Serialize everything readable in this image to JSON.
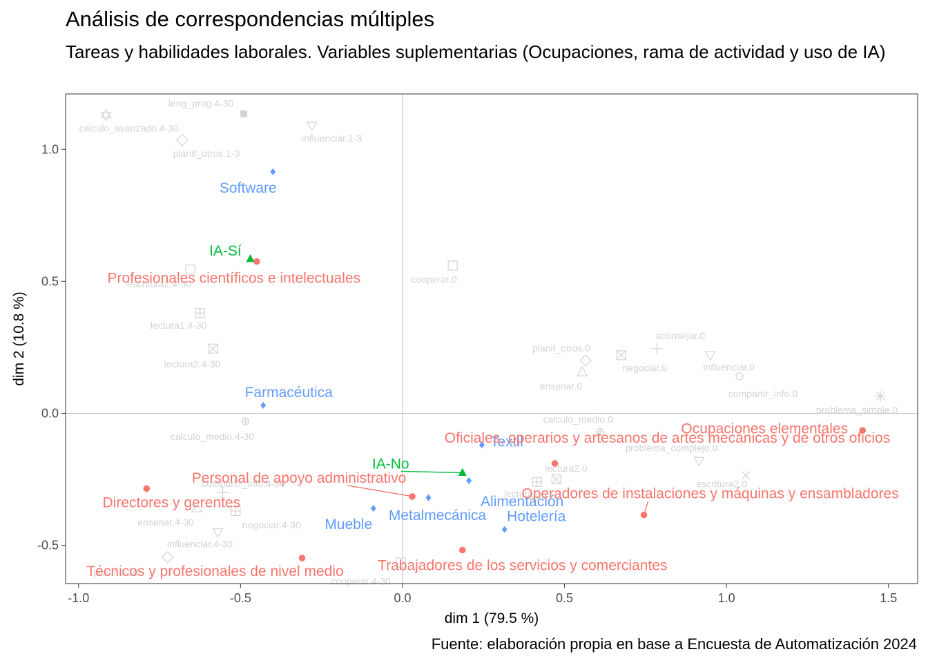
{
  "title": "Análisis de correspondencias múltiples",
  "subtitle": "Tareas y habilidades laborales. Variables suplementarias (Ocupaciones, rama de actividad y uso de IA)",
  "caption": "Fuente: elaboración propia en base a Encuesta de Automatización 2024",
  "chart_data": {
    "type": "scatter",
    "title": "Análisis de correspondencias múltiples",
    "xlabel": "dim 1 (79.5 %)",
    "ylabel": "dim 2 (10.8 %)",
    "xlim": [
      -1.04,
      1.59
    ],
    "ylim": [
      -0.645,
      1.21
    ],
    "xticks": [
      -1.0,
      -0.5,
      0.0,
      0.5,
      1.0,
      1.5
    ],
    "xtick_labels": [
      "-1.0",
      "-0.5",
      "0.0",
      "0.5",
      "1.0",
      "1.5"
    ],
    "yticks": [
      -0.5,
      0.0,
      0.5,
      1.0
    ],
    "ytick_labels": [
      "-0.5",
      "0.0",
      "0.5",
      "1.0"
    ],
    "grid": false,
    "colors": {
      "ocupaciones": "#F8766D",
      "ia": "#00BA38",
      "rama": "#619CFF",
      "variables": "#D3D3D3"
    },
    "series": [
      {
        "group": "ocupaciones",
        "marker": "circle",
        "points": [
          {
            "label": "Profesionales científicos e intelectuales",
            "x": -0.45,
            "y": 0.575
          },
          {
            "label": "Directores y gerentes",
            "x": -0.79,
            "y": -0.285
          },
          {
            "label": "Personal de apoyo administrativo",
            "x": 0.03,
            "y": -0.315
          },
          {
            "label": "Técnicos y profesionales de nivel medio",
            "x": -0.31,
            "y": -0.548
          },
          {
            "label": "Trabajadores de los servicios y comerciantes",
            "x": 0.185,
            "y": -0.518
          },
          {
            "label": "Operadores de instalaciones y máquinas y ensambladores",
            "x": 0.745,
            "y": -0.385
          },
          {
            "label": "Oficiales, operarios y artesanos de artes mecánicas y de otros oficios",
            "x": 0.47,
            "y": -0.19
          },
          {
            "label": "Ocupaciones elementales",
            "x": 1.42,
            "y": -0.065
          }
        ]
      },
      {
        "group": "ia",
        "marker": "triangle",
        "points": [
          {
            "label": "IA-Sí",
            "x": -0.47,
            "y": 0.585
          },
          {
            "label": "IA-No",
            "x": 0.185,
            "y": -0.225
          }
        ]
      },
      {
        "group": "rama",
        "marker": "diamond",
        "points": [
          {
            "label": "Software",
            "x": -0.4,
            "y": 0.915
          },
          {
            "label": "Farmacéutica",
            "x": -0.43,
            "y": 0.03
          },
          {
            "label": "Textil",
            "x": 0.245,
            "y": -0.12
          },
          {
            "label": "Alimentación",
            "x": 0.205,
            "y": -0.255
          },
          {
            "label": "Metalmecánica",
            "x": 0.08,
            "y": -0.32
          },
          {
            "label": "Mueble",
            "x": -0.09,
            "y": -0.36
          },
          {
            "label": "Hotelería",
            "x": 0.315,
            "y": -0.44
          }
        ]
      },
      {
        "group": "variables",
        "marker": "open",
        "points": [
          {
            "label": "leng_prog.4-30",
            "x": -0.49,
            "y": 1.135
          },
          {
            "label": "calculo_avanzado.4-30",
            "x": -0.915,
            "y": 1.13
          },
          {
            "label": "influenciar.1-3",
            "x": -0.28,
            "y": 1.09
          },
          {
            "label": "planif_otros.1-3",
            "x": -0.68,
            "y": 1.035
          },
          {
            "label": "escritura2.4-30",
            "x": -0.655,
            "y": 0.545
          },
          {
            "label": "cooperar.0",
            "x": 0.155,
            "y": 0.56
          },
          {
            "label": "lectura1.4-30",
            "x": -0.625,
            "y": 0.38
          },
          {
            "label": "lectura2.4-30",
            "x": -0.585,
            "y": 0.245
          },
          {
            "label": "planif_otros.0",
            "x": 0.565,
            "y": 0.2
          },
          {
            "label": "negociar.0",
            "x": 0.675,
            "y": 0.22
          },
          {
            "label": "aconsejar.0",
            "x": 0.785,
            "y": 0.245
          },
          {
            "label": "influenciar.0",
            "x": 0.95,
            "y": 0.22
          },
          {
            "label": "ensenar.0",
            "x": 0.555,
            "y": 0.155
          },
          {
            "label": "compartir_info.0",
            "x": 1.04,
            "y": 0.14
          },
          {
            "label": "problema_simple.0",
            "x": 1.475,
            "y": 0.065
          },
          {
            "label": "calculo_medio.4-30",
            "x": -0.485,
            "y": -0.03
          },
          {
            "label": "calculo_medio.0",
            "x": 0.61,
            "y": -0.07
          },
          {
            "label": "problema_complejo.0",
            "x": 0.915,
            "y": -0.18
          },
          {
            "label": "lectura2.0",
            "x": 0.475,
            "y": -0.25
          },
          {
            "label": "lectura1.0",
            "x": 0.415,
            "y": -0.26
          },
          {
            "label": "escritura2.0",
            "x": 1.06,
            "y": -0.235
          },
          {
            "label": "negociar.4-30",
            "x": -0.515,
            "y": -0.37
          },
          {
            "label": "ensenar.4-30",
            "x": -0.635,
            "y": -0.36
          },
          {
            "label": "compartir_info.4-30",
            "x": -0.555,
            "y": -0.3
          },
          {
            "label": "influenciar.4-30",
            "x": -0.57,
            "y": -0.45
          },
          {
            "label": "planif.4-30",
            "x": -0.725,
            "y": -0.545
          },
          {
            "label": "cooperar.4-30",
            "x": -0.005,
            "y": -0.565
          }
        ]
      }
    ]
  }
}
